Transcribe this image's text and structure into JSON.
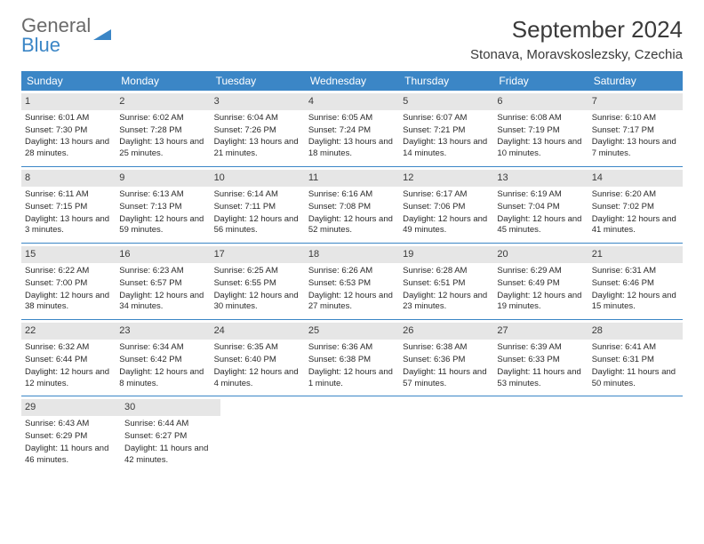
{
  "logo": {
    "text1": "General",
    "text2": "Blue"
  },
  "title": "September 2024",
  "location": "Stonava, Moravskoslezsky, Czechia",
  "weekdays": [
    "Sunday",
    "Monday",
    "Tuesday",
    "Wednesday",
    "Thursday",
    "Friday",
    "Saturday"
  ],
  "colors": {
    "header_bg": "#3b86c6",
    "header_text": "#ffffff",
    "daynum_bg": "#e6e6e6",
    "row_border": "#3b86c6",
    "body_text": "#2a2a2a",
    "title_text": "#3a3a3a",
    "logo_gray": "#6a6a6a",
    "logo_blue": "#3b86c6"
  },
  "weeks": [
    [
      {
        "n": "1",
        "sr": "6:01 AM",
        "ss": "7:30 PM",
        "dl": "13 hours and 28 minutes."
      },
      {
        "n": "2",
        "sr": "6:02 AM",
        "ss": "7:28 PM",
        "dl": "13 hours and 25 minutes."
      },
      {
        "n": "3",
        "sr": "6:04 AM",
        "ss": "7:26 PM",
        "dl": "13 hours and 21 minutes."
      },
      {
        "n": "4",
        "sr": "6:05 AM",
        "ss": "7:24 PM",
        "dl": "13 hours and 18 minutes."
      },
      {
        "n": "5",
        "sr": "6:07 AM",
        "ss": "7:21 PM",
        "dl": "13 hours and 14 minutes."
      },
      {
        "n": "6",
        "sr": "6:08 AM",
        "ss": "7:19 PM",
        "dl": "13 hours and 10 minutes."
      },
      {
        "n": "7",
        "sr": "6:10 AM",
        "ss": "7:17 PM",
        "dl": "13 hours and 7 minutes."
      }
    ],
    [
      {
        "n": "8",
        "sr": "6:11 AM",
        "ss": "7:15 PM",
        "dl": "13 hours and 3 minutes."
      },
      {
        "n": "9",
        "sr": "6:13 AM",
        "ss": "7:13 PM",
        "dl": "12 hours and 59 minutes."
      },
      {
        "n": "10",
        "sr": "6:14 AM",
        "ss": "7:11 PM",
        "dl": "12 hours and 56 minutes."
      },
      {
        "n": "11",
        "sr": "6:16 AM",
        "ss": "7:08 PM",
        "dl": "12 hours and 52 minutes."
      },
      {
        "n": "12",
        "sr": "6:17 AM",
        "ss": "7:06 PM",
        "dl": "12 hours and 49 minutes."
      },
      {
        "n": "13",
        "sr": "6:19 AM",
        "ss": "7:04 PM",
        "dl": "12 hours and 45 minutes."
      },
      {
        "n": "14",
        "sr": "6:20 AM",
        "ss": "7:02 PM",
        "dl": "12 hours and 41 minutes."
      }
    ],
    [
      {
        "n": "15",
        "sr": "6:22 AM",
        "ss": "7:00 PM",
        "dl": "12 hours and 38 minutes."
      },
      {
        "n": "16",
        "sr": "6:23 AM",
        "ss": "6:57 PM",
        "dl": "12 hours and 34 minutes."
      },
      {
        "n": "17",
        "sr": "6:25 AM",
        "ss": "6:55 PM",
        "dl": "12 hours and 30 minutes."
      },
      {
        "n": "18",
        "sr": "6:26 AM",
        "ss": "6:53 PM",
        "dl": "12 hours and 27 minutes."
      },
      {
        "n": "19",
        "sr": "6:28 AM",
        "ss": "6:51 PM",
        "dl": "12 hours and 23 minutes."
      },
      {
        "n": "20",
        "sr": "6:29 AM",
        "ss": "6:49 PM",
        "dl": "12 hours and 19 minutes."
      },
      {
        "n": "21",
        "sr": "6:31 AM",
        "ss": "6:46 PM",
        "dl": "12 hours and 15 minutes."
      }
    ],
    [
      {
        "n": "22",
        "sr": "6:32 AM",
        "ss": "6:44 PM",
        "dl": "12 hours and 12 minutes."
      },
      {
        "n": "23",
        "sr": "6:34 AM",
        "ss": "6:42 PM",
        "dl": "12 hours and 8 minutes."
      },
      {
        "n": "24",
        "sr": "6:35 AM",
        "ss": "6:40 PM",
        "dl": "12 hours and 4 minutes."
      },
      {
        "n": "25",
        "sr": "6:36 AM",
        "ss": "6:38 PM",
        "dl": "12 hours and 1 minute."
      },
      {
        "n": "26",
        "sr": "6:38 AM",
        "ss": "6:36 PM",
        "dl": "11 hours and 57 minutes."
      },
      {
        "n": "27",
        "sr": "6:39 AM",
        "ss": "6:33 PM",
        "dl": "11 hours and 53 minutes."
      },
      {
        "n": "28",
        "sr": "6:41 AM",
        "ss": "6:31 PM",
        "dl": "11 hours and 50 minutes."
      }
    ],
    [
      {
        "n": "29",
        "sr": "6:43 AM",
        "ss": "6:29 PM",
        "dl": "11 hours and 46 minutes."
      },
      {
        "n": "30",
        "sr": "6:44 AM",
        "ss": "6:27 PM",
        "dl": "11 hours and 42 minutes."
      },
      null,
      null,
      null,
      null,
      null
    ]
  ],
  "labels": {
    "sunrise": "Sunrise:",
    "sunset": "Sunset:",
    "daylight": "Daylight:"
  }
}
